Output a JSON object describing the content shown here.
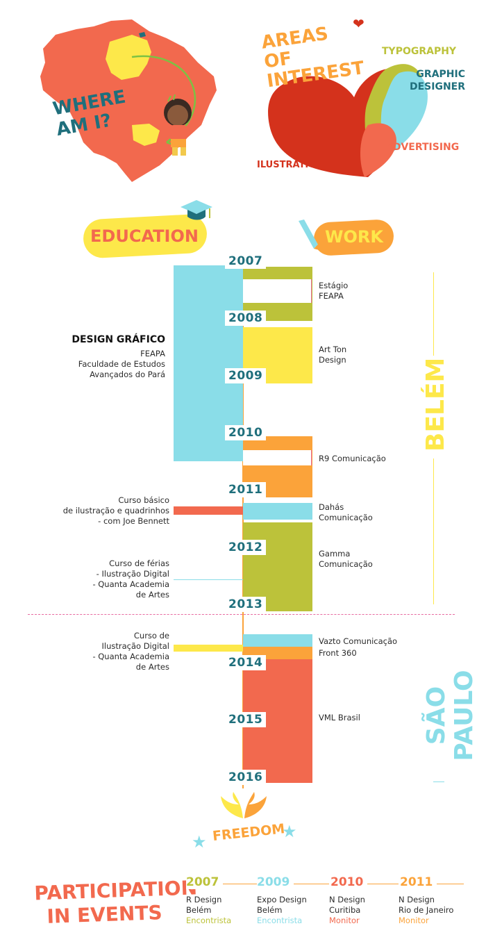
{
  "colors": {
    "teal": "#1f6f7c",
    "lightblue": "#8adde8",
    "olive": "#bcc23a",
    "yellow": "#fde84a",
    "orange": "#fba33a",
    "coral": "#f2694e",
    "red": "#d4321c",
    "pink": "#e86aa0"
  },
  "header": {
    "where": "WHERE AM I?",
    "areas_title": "AREAS OF INTEREST",
    "areas": {
      "typography": "TYPOGRAPHY",
      "graphic_designer": "GRAPHIC DESIGNER",
      "advertising": "ADVERTISING",
      "illustration": "ILUSTRATION"
    }
  },
  "sections": {
    "education": "EDUCATION",
    "work": "WORK"
  },
  "years": [
    "2007",
    "2008",
    "2009",
    "2010",
    "2011",
    "2012",
    "2013",
    "2014",
    "2015",
    "2016"
  ],
  "education": {
    "design": {
      "title": "DESIGN GRÁFICO",
      "school": "FEAPA",
      "line1": "Faculdade de Estudos",
      "line2": "Avançados do Pará"
    },
    "course1": {
      "line1": "Curso básico",
      "line2": "de ilustração e quadrinhos",
      "line3": "- com Joe Bennett"
    },
    "course2": {
      "line1": "Curso de férias",
      "line2": "- Ilustração Digital",
      "line3": "- Quanta Academia",
      "line4": "de Artes"
    },
    "course3": {
      "line1": "Curso de",
      "line2": "Ilustração Digital",
      "line3": "- Quanta Academia",
      "line4": "de Artes"
    }
  },
  "work": {
    "estagio": {
      "line1": "Estágio",
      "line2": "FEAPA"
    },
    "artton": {
      "line1": "Art Ton",
      "line2": "Design"
    },
    "r9": "R9 Comunicação",
    "dahas": {
      "line1": "Dahás",
      "line2": "Comunicação"
    },
    "gamma": {
      "line1": "Gamma",
      "line2": "Comunicação"
    },
    "vazto": "Vazto Comunicação",
    "front": "Front 360",
    "vml": "VML Brasil"
  },
  "cities": {
    "belem": "BELÉM",
    "saopaulo": "SÃO PAULO"
  },
  "freedom": "FREEDOM",
  "events": {
    "title_line1": "PARTICIPATION",
    "title_line2": "IN EVENTS",
    "items": [
      {
        "year": "2007",
        "name1": "R Design",
        "name2": "Belém",
        "role": "Encontrista"
      },
      {
        "year": "2009",
        "name1": "Expo Design",
        "name2": "Belém",
        "role": "Encontrista"
      },
      {
        "year": "2010",
        "name1": "N Design",
        "name2": "Curitiba",
        "role": "Monitor"
      },
      {
        "year": "2011",
        "name1": "N Design",
        "name2": "Rio de Janeiro",
        "role": "Monitor"
      }
    ]
  }
}
